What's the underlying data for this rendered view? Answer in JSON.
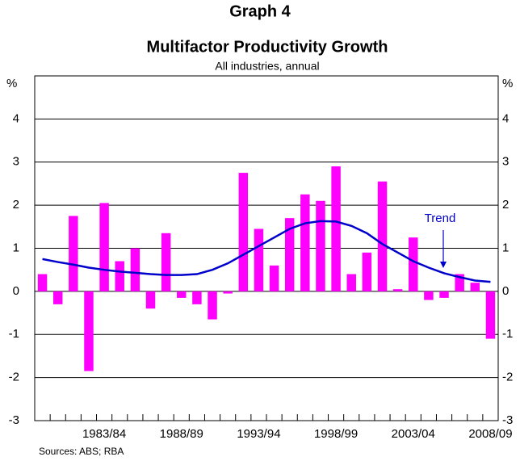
{
  "chart_data": {
    "type": "bar",
    "super_title": "Graph 4",
    "title": "Multifactor Productivity Growth",
    "subtitle": "All industries, annual",
    "y_label": "%",
    "y2_label": "%",
    "source": "Sources: ABS; RBA",
    "categories": [
      null,
      null,
      null,
      null,
      "1983/84",
      null,
      null,
      null,
      null,
      "1988/89",
      null,
      null,
      null,
      null,
      "1993/94",
      null,
      null,
      null,
      null,
      "1998/99",
      null,
      null,
      null,
      null,
      "2003/04",
      null,
      null,
      null,
      null,
      "2008/09"
    ],
    "series": [
      {
        "name": "Multifactor productivity growth",
        "type": "bar",
        "color": "#ff00ff",
        "values": [
          0.4,
          -0.3,
          1.75,
          -1.85,
          2.05,
          0.7,
          1.0,
          -0.4,
          1.35,
          -0.15,
          -0.3,
          -0.65,
          -0.05,
          2.75,
          1.45,
          0.6,
          1.7,
          2.25,
          2.1,
          2.9,
          0.4,
          0.9,
          2.55,
          0.05,
          1.25,
          -0.2,
          -0.15,
          0.4,
          0.2,
          -1.1
        ]
      },
      {
        "name": "Trend",
        "type": "line",
        "color": "#0000cc",
        "values": [
          0.75,
          0.68,
          0.62,
          0.55,
          0.5,
          0.46,
          0.43,
          0.4,
          0.38,
          0.38,
          0.4,
          0.5,
          0.65,
          0.85,
          1.05,
          1.25,
          1.45,
          1.58,
          1.63,
          1.62,
          1.52,
          1.35,
          1.1,
          0.9,
          0.7,
          0.55,
          0.42,
          0.33,
          0.25,
          0.22
        ]
      }
    ],
    "ylim": [
      -3,
      5
    ],
    "yticks": [
      -3,
      -2,
      -1,
      0,
      1,
      2,
      3,
      4
    ],
    "y2lim": [
      -3,
      5
    ],
    "y2ticks": [
      -3,
      -2,
      -1,
      0,
      1,
      2,
      3,
      4
    ],
    "grid": true
  }
}
